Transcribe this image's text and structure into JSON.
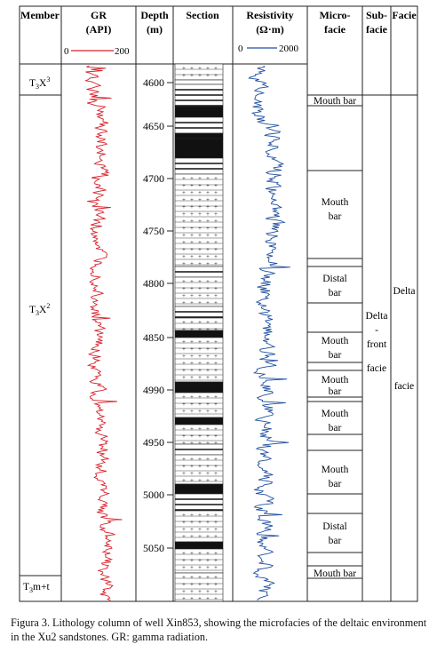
{
  "headers": {
    "member": "Member",
    "gr": [
      "GR",
      "(API)"
    ],
    "depth": [
      "Depth",
      "(m)"
    ],
    "section": "Section",
    "resistivity": [
      "Resistivity",
      "(Ω·m)"
    ],
    "microfacie": [
      "Micro-",
      "facie"
    ],
    "subfacie": [
      "Sub-",
      "facie"
    ],
    "facie": "Facie"
  },
  "chart_data": {
    "type": "line",
    "gr_scale": {
      "min": "0",
      "max": "200"
    },
    "res_scale": {
      "min": "0",
      "max": "2000"
    },
    "depth_ticks": [
      "4600",
      "4650",
      "4700",
      "4750",
      "4800",
      "4850",
      "4990",
      "4950",
      "5000",
      "5050"
    ],
    "series": [
      {
        "name": "GR",
        "color": "#d8202a",
        "xlim": [
          0,
          200
        ]
      },
      {
        "name": "Resistivity",
        "color": "#1f4fa0",
        "xlim": [
          0,
          2000
        ]
      }
    ]
  },
  "members": [
    {
      "base": "T",
      "sub": "3",
      "name": "X",
      "sup": "3"
    },
    {
      "base": "T",
      "sub": "3",
      "name": "X",
      "sup": "2"
    },
    {
      "base": "T",
      "sub": "3",
      "name": "m+t",
      "sup": ""
    }
  ],
  "microfacies": [
    [
      "Mouth bar"
    ],
    [
      "Mouth",
      "bar"
    ],
    [
      "Distal",
      "bar"
    ],
    [
      "Mouth",
      "bar"
    ],
    [
      "Mouth",
      "bar"
    ],
    [
      "Mouth",
      "bar"
    ],
    [
      "Mouth",
      "bar"
    ],
    [
      "Distal",
      "bar"
    ],
    [
      "Mouth bar"
    ]
  ],
  "subfacie": [
    "Delta",
    "-",
    "front",
    "facie"
  ],
  "facie": [
    "Delta",
    "facie"
  ],
  "caption": "Figura 3. Lithology column of well Xin853, showing the microfacies of the deltaic environment in the Xu2 sandstones. GR: gamma radiation."
}
